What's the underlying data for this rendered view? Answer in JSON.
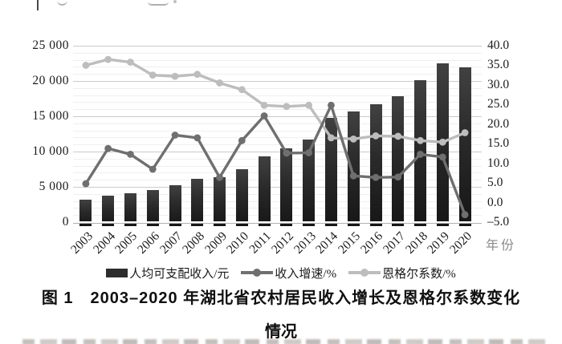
{
  "figure": {
    "caption_line1": "图 1　2003–2020 年湖北省农村居民收入增长及恩格尔系数变化",
    "caption_line2": "情况"
  },
  "colors": {
    "bar": "#2d2d2d",
    "income_growth_line": "#6f6f6f",
    "engel_line": "#bdbdbd",
    "gridline_major": "#cbcbcb",
    "gridline_minor": "#efefef",
    "year_label_gray": "#8a8a8a"
  },
  "chart_data": {
    "type": "bar",
    "subtype": "combo-bar-line-dual-axis",
    "title": "图 1 2003–2020 年湖北省农村居民收入增长及恩格尔系数变化情况",
    "categories": [
      "2003",
      "2004",
      "2005",
      "2006",
      "2007",
      "2008",
      "2009",
      "2010",
      "2011",
      "2012",
      "2013",
      "2014",
      "2015",
      "2016",
      "2017",
      "2018",
      "2019",
      "2020"
    ],
    "series": [
      {
        "name": "人均可支配收入/元",
        "type": "bar",
        "axis": "left",
        "values": [
          3200,
          3700,
          4100,
          4500,
          5200,
          6100,
          6400,
          7500,
          9300,
          10400,
          11700,
          14800,
          15700,
          16700,
          17800,
          20100,
          22500,
          21900
        ]
      },
      {
        "name": "收入增速/%",
        "type": "line",
        "axis": "right",
        "values": [
          4.8,
          13.8,
          12.3,
          8.5,
          17.2,
          16.5,
          6.4,
          15.8,
          22.1,
          12.6,
          12.7,
          24.8,
          6.8,
          6.4,
          6.5,
          12.3,
          11.6,
          -3.1
        ]
      },
      {
        "name": "恩格尔系数/%",
        "type": "line",
        "axis": "right",
        "values": [
          35.0,
          36.5,
          35.8,
          32.5,
          32.2,
          32.7,
          30.5,
          28.8,
          24.8,
          24.5,
          24.8,
          16.5,
          16.2,
          17.0,
          16.9,
          15.8,
          15.4,
          17.8
        ]
      }
    ],
    "left_axis": {
      "min": 0,
      "max": 25000,
      "step": 5000,
      "tick_labels": [
        "25 000",
        "20 000",
        "15 000",
        "10 000",
        "5 000",
        "0"
      ]
    },
    "right_axis": {
      "min": -5,
      "max": 40,
      "step": 5,
      "tick_labels": [
        "40.0",
        "35.0",
        "30.0",
        "25.0",
        "20.0",
        "15.0",
        "10.0",
        "5.0",
        "0.0",
        "–5.0"
      ]
    },
    "x_axis_label": "年份",
    "grid": true,
    "legend_position": "bottom"
  }
}
